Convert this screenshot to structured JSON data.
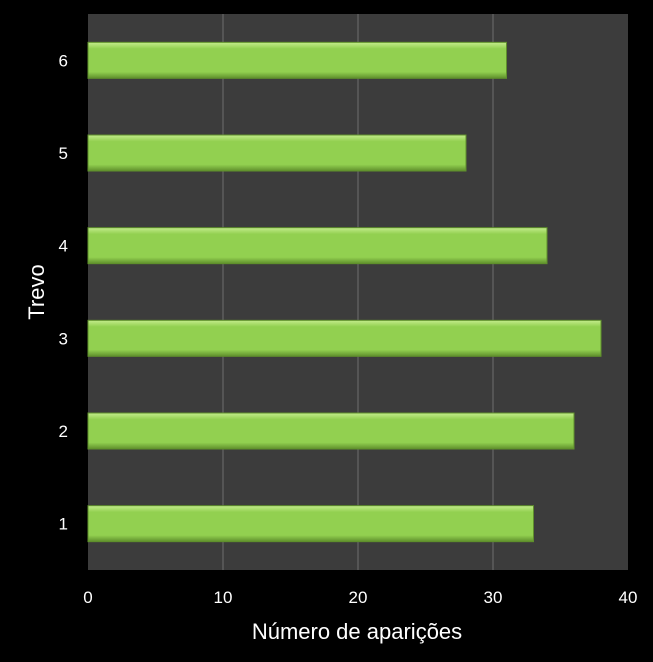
{
  "chart_data": {
    "type": "bar",
    "orientation": "horizontal",
    "title": "",
    "xlabel": "Número de aparições",
    "ylabel": "Trevo",
    "categories": [
      "1",
      "2",
      "3",
      "4",
      "5",
      "6"
    ],
    "values": [
      33,
      36,
      38,
      34,
      28,
      31
    ],
    "xlim": [
      0,
      40
    ],
    "xticks": [
      "0",
      "10",
      "20",
      "30",
      "40"
    ],
    "grid": "vertical",
    "legend": "none",
    "colors": {
      "background": "#000000",
      "plot_area": "#3c3c3c",
      "gridline": "#6e6e6e",
      "bar": "#92d050",
      "bar_highlight": "#c4ec8c",
      "bar_shade": "#5f8f2c",
      "text": "#ffffff"
    }
  }
}
